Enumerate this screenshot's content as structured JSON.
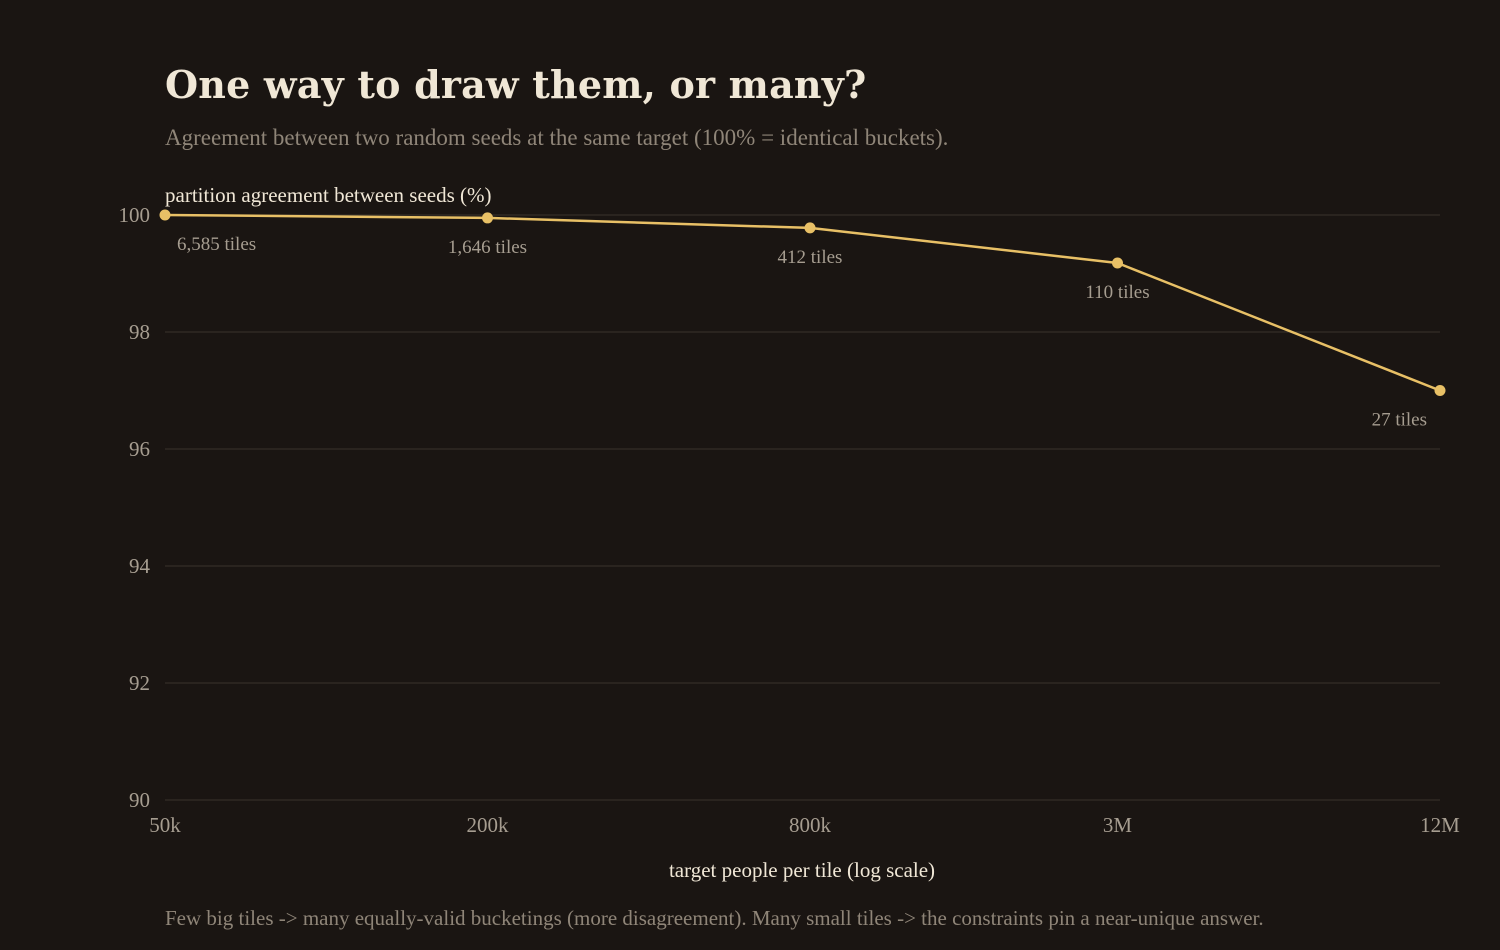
{
  "header": {
    "title": "One way to draw them, or many?",
    "subtitle": "Agreement between two random seeds at the same target (100% = identical buckets)."
  },
  "footer": {
    "note": "Few big tiles -> many equally-valid bucketings (more disagreement). Many small tiles -> the constraints pin a near-unique answer."
  },
  "chart_data": {
    "type": "line",
    "title": "One way to draw them, or many?",
    "subtitle": "Agreement between two random seeds at the same target (100% = identical buckets).",
    "xlabel": "target people per tile  (log scale)",
    "ylabel": "partition agreement between seeds (%)",
    "x_scale": "log",
    "x": [
      50000,
      200000,
      800000,
      3000000,
      12000000
    ],
    "x_tick_labels": [
      "50k",
      "200k",
      "800k",
      "3M",
      "12M"
    ],
    "ylim": [
      90,
      100
    ],
    "y_ticks": [
      90,
      92,
      94,
      96,
      98,
      100
    ],
    "grid": "horizontal",
    "series": [
      {
        "values": [
          100.0,
          99.95,
          99.78,
          99.18,
          97.0
        ],
        "point_labels": [
          "6,585 tiles",
          "1,646 tiles",
          "412 tiles",
          "110 tiles",
          "27 tiles"
        ],
        "color": "#e8c066"
      }
    ],
    "colors": {
      "background": "#1a1512",
      "line": "#e8c066",
      "grid": "#3a332c",
      "title": "#f0e7d6",
      "muted": "#8f8578"
    }
  }
}
